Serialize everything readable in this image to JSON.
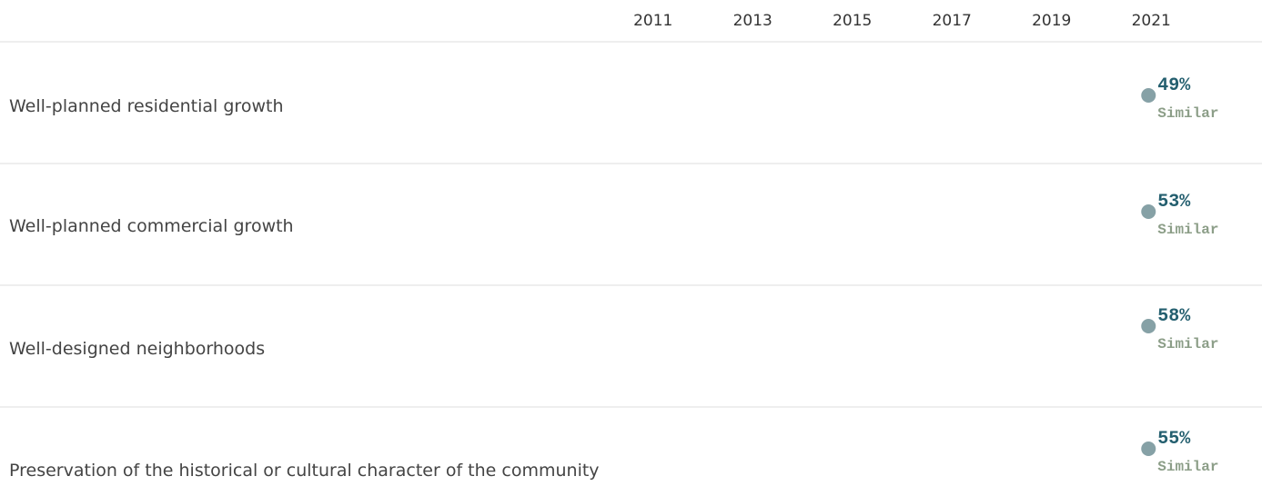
{
  "chart_data": {
    "type": "dot",
    "xticks": [
      2011,
      2013,
      2015,
      2017,
      2019,
      2021
    ],
    "xlim": [
      2010,
      2022
    ],
    "categories": [
      "Well-planned residential growth",
      "Well-planned commercial growth",
      "Well-designed neighborhoods",
      "Preservation of the historical or cultural character of the community"
    ],
    "x": [
      2021,
      2021,
      2021,
      2021
    ],
    "values": [
      49,
      53,
      58,
      55
    ],
    "value_labels": [
      "49%",
      "53%",
      "58%",
      "55%"
    ],
    "comparison_labels": [
      "Similar",
      "Similar",
      "Similar",
      "Similar"
    ],
    "color": "#86a1a6",
    "value_color": "#245f6f",
    "comparison_color": "#8c9e88"
  }
}
